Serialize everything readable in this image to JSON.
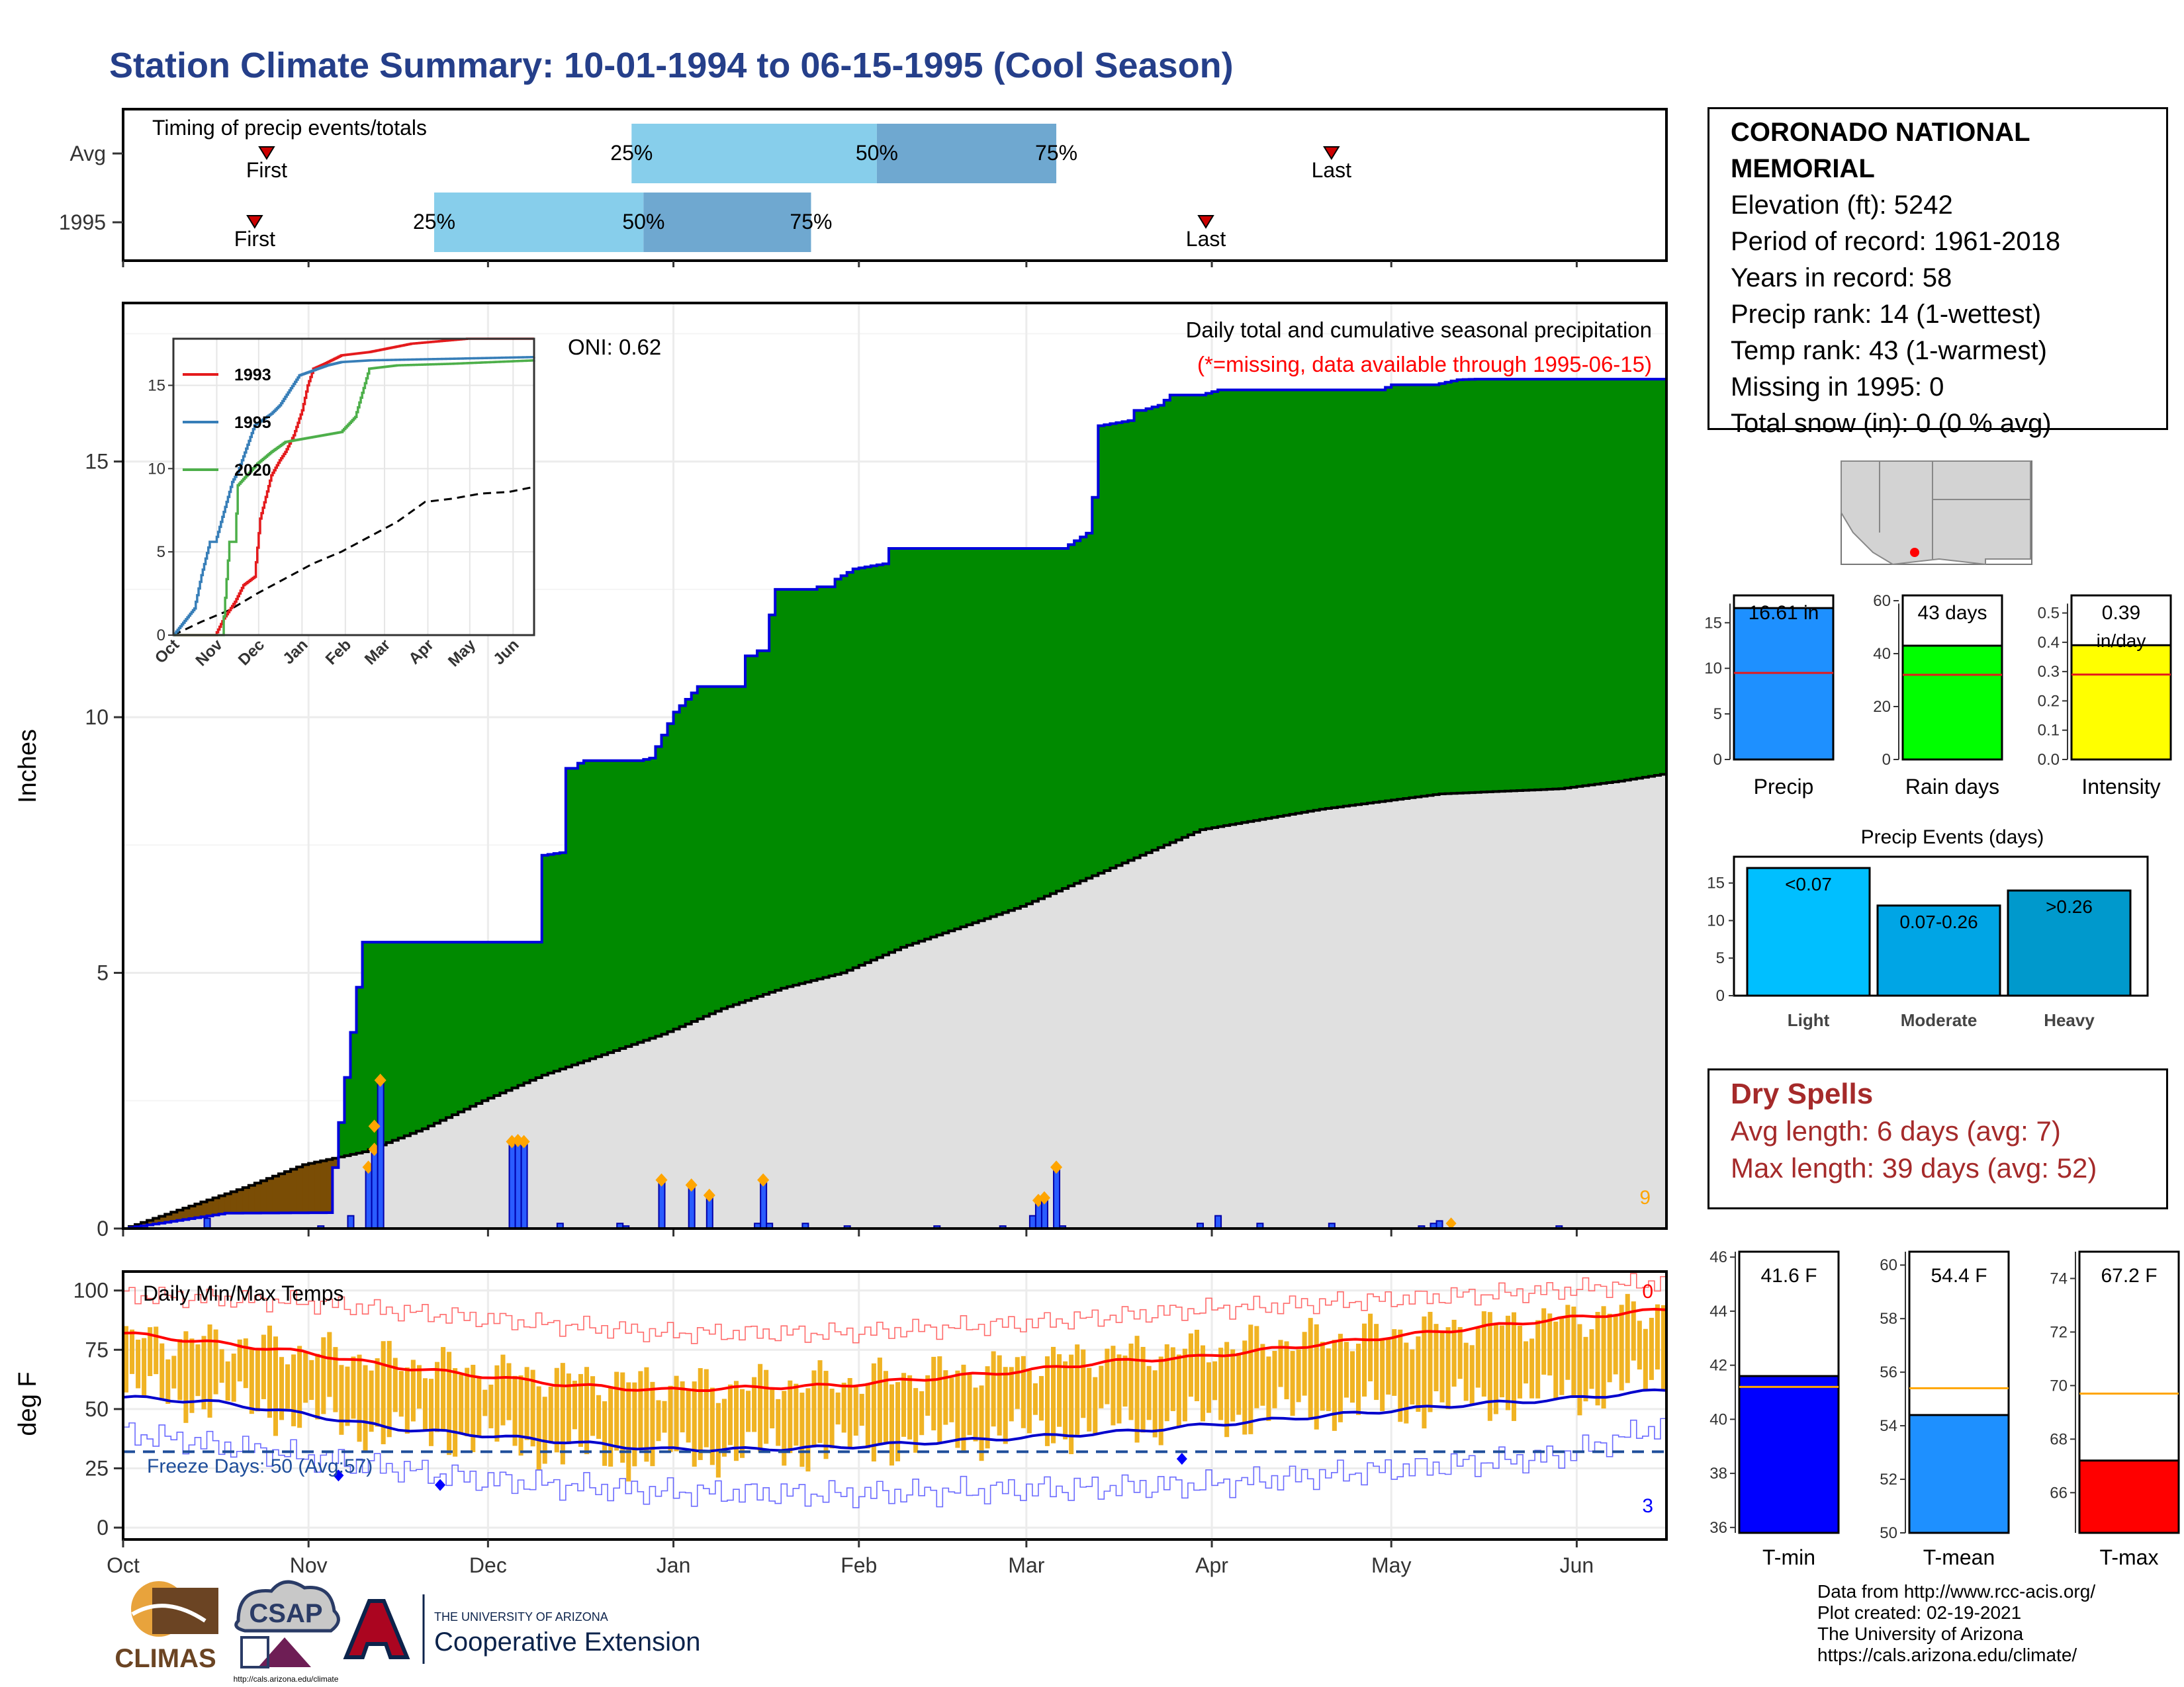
{
  "title": "Station Climate Summary: 10-01-1994 to 06-15-1995 (Cool Season)",
  "timing": {
    "title": "Timing of precip events/totals",
    "rows": [
      {
        "label": "Avg",
        "first_day": 24,
        "last_day": 202,
        "p25_day": 85,
        "p50_day": 126,
        "p75_day": 156,
        "first_label": "First",
        "last_label": "Last",
        "p25_label": "25%",
        "p50_label": "50%",
        "p75_label": "75%"
      },
      {
        "label": "1995",
        "first_day": 22,
        "last_day": 181,
        "p25_day": 52,
        "p50_day": 87,
        "p75_day": 115,
        "first_label": "First",
        "last_label": "Last",
        "p25_label": "25%",
        "p50_label": "50%",
        "p75_label": "75%"
      }
    ]
  },
  "station": {
    "name": "CORONADO NATIONAL MEMORIAL",
    "elevation": "Elevation (ft): 5242",
    "period": "Period of record: 1961-2018",
    "years": "Years in record: 58",
    "precip_rank": "Precip rank: 14 (1-wettest)",
    "temp_rank": "Temp rank: 43 (1-warmest)",
    "missing": "Missing in 1995: 0",
    "snow": "Total snow (in): 0 (0 % avg)"
  },
  "precip_panel": {
    "ylabel": "Inches",
    "yticks": [
      "0",
      "5",
      "10",
      "15"
    ],
    "annot_title": "Daily total and cumulative seasonal precipitation",
    "annot_missing": "(*=missing, data available through 1995-06-15)",
    "oni": "ONI: 0.62",
    "count_label": "9",
    "colors": {
      "above": "#008a00",
      "below": "#7a4d05",
      "avg": "#e0e0e0",
      "line": "#0000dd",
      "marker": "#ffa500"
    }
  },
  "inset": {
    "yticks": [
      "0",
      "5",
      "10",
      "15"
    ],
    "months": [
      "Oct",
      "Nov",
      "Dec",
      "Jan",
      "Feb",
      "Mar",
      "Apr",
      "May",
      "Jun"
    ],
    "legend": [
      {
        "name": "1993",
        "color": "#e41a1c"
      },
      {
        "name": "1995",
        "color": "#377eb8"
      },
      {
        "name": "2020",
        "color": "#4daf4a"
      }
    ]
  },
  "temp_panel": {
    "ylabel": "deg F",
    "title": "Daily Min/Max Temps",
    "freeze_label": "Freeze Days: 50 (Avg:57)",
    "top_count": "0",
    "bottom_count": "3",
    "yticks": [
      "0",
      "25",
      "50",
      "75",
      "100"
    ],
    "xticks": [
      "Oct",
      "Nov",
      "Dec",
      "Jan",
      "Feb",
      "Mar",
      "Apr",
      "May",
      "Jun"
    ]
  },
  "mini_bars": [
    {
      "label": "Precip",
      "value": 16.61,
      "value_label": "16.61 in",
      "avg": 9.5,
      "ymax": 18,
      "ticks": [
        "0",
        "5",
        "10",
        "15"
      ],
      "color": "#1e90ff"
    },
    {
      "label": "Rain days",
      "value": 43,
      "value_label": "43 days",
      "avg": 32,
      "ymax": 62,
      "ticks": [
        "0",
        "20",
        "40",
        "60"
      ],
      "color": "#00ff00"
    },
    {
      "label": "Intensity",
      "value": 0.39,
      "value_label": "0.39",
      "value_sub": "in/day",
      "avg": 0.29,
      "ymax": 0.56,
      "ticks": [
        "0.0",
        "0.1",
        "0.2",
        "0.3",
        "0.4",
        "0.5"
      ],
      "color": "#ffff00"
    }
  ],
  "events": {
    "title": "Precip Events (days)",
    "ticks": [
      "0",
      "5",
      "10",
      "15"
    ],
    "bars": [
      {
        "cat": "Light",
        "label": "<0.07",
        "value": 17,
        "color": "#00bfff"
      },
      {
        "cat": "Moderate",
        "label": "0.07-0.26",
        "value": 12,
        "color": "#00a5e5"
      },
      {
        "cat": "Heavy",
        "label": ">0.26",
        "value": 14,
        "color": "#0099cc"
      }
    ]
  },
  "dry_spells": {
    "title": "Dry Spells",
    "avg_length": "Avg length: 6 days (avg: 7)",
    "max_length": "Max length: 39 days (avg: 52)"
  },
  "temp_bars": [
    {
      "label": "T-min",
      "value": 41.6,
      "value_label": "41.6 F",
      "avg": 41.2,
      "ymin": 35.8,
      "ymax": 46.2,
      "ticks": [
        "36",
        "38",
        "40",
        "42",
        "44",
        "46"
      ],
      "color": "#0000ff"
    },
    {
      "label": "T-mean",
      "value": 54.4,
      "value_label": "54.4 F",
      "avg": 55.4,
      "ymin": 50.0,
      "ymax": 60.5,
      "ticks": [
        "50",
        "52",
        "54",
        "56",
        "58",
        "60"
      ],
      "color": "#1e90ff"
    },
    {
      "label": "T-max",
      "value": 67.2,
      "value_label": "67.2 F",
      "avg": 69.7,
      "ymin": 64.5,
      "ymax": 75.0,
      "ticks": [
        "66",
        "68",
        "70",
        "72",
        "74"
      ],
      "color": "#ff0000"
    }
  ],
  "logos": {
    "climas": "CLIMAS",
    "csap": "CSAP",
    "csap_url": "http://cals.arizona.edu/climate",
    "ua_small": "THE UNIVERSITY OF ARIZONA",
    "ua_big": "Cooperative Extension"
  },
  "credits": {
    "line1": "Data from http://www.rcc-acis.org/",
    "line2": "Plot created: 02-19-2021",
    "line3": "The University of Arizona",
    "line4": "https://cals.arizona.edu/climate/"
  },
  "chart_data": [
    {
      "type": "area",
      "title": "Daily total and cumulative seasonal precipitation",
      "ylabel": "Inches",
      "ylim": [
        0,
        18.1
      ],
      "x_unit": "days since Oct 1",
      "cumulative_1995": {
        "x": [
          0,
          17,
          34,
          40,
          41,
          42,
          43,
          44,
          45,
          47,
          49,
          51,
          55,
          56,
          57,
          59,
          60,
          62,
          64,
          66,
          68,
          69,
          70,
          73,
          74,
          75,
          76,
          77,
          78,
          79,
          80,
          85,
          86,
          88,
          92,
          96,
          103,
          104,
          105,
          106,
          107,
          108,
          109,
          112,
          115,
          116,
          117,
          118,
          119,
          122,
          127,
          128,
          135,
          139,
          140,
          142,
          143,
          150,
          153,
          157,
          161,
          162,
          163,
          168,
          169,
          170,
          173,
          175,
          180,
          183,
          186,
          188,
          190,
          196,
          200,
          204,
          206,
          209,
          210,
          212,
          217,
          218,
          219,
          223,
          226,
          228,
          230,
          232,
          237,
          240,
          247,
          248,
          249,
          250,
          251,
          252,
          253,
          255,
          256,
          257,
          258
        ],
        "y": [
          0,
          0.3,
          0.31,
          5.6,
          5.6,
          5.6,
          5.6,
          5.6,
          5.6,
          5.6,
          5.6,
          5.6,
          5.6,
          5.6,
          5.6,
          5.6,
          5.6,
          5.6,
          5.6,
          5.6,
          5.6,
          5.6,
          7.3,
          7.35,
          9.0,
          9.0,
          9.1,
          9.15,
          9.15,
          9.15,
          9.15,
          9.15,
          9.15,
          9.2,
          10.1,
          10.6,
          10.6,
          11.2,
          11.2,
          11.3,
          11.3,
          12.0,
          12.5,
          12.5,
          12.5,
          12.55,
          12.55,
          12.55,
          12.7,
          12.9,
          13.0,
          13.3,
          13.3,
          13.3,
          13.3,
          13.3,
          13.3,
          13.3,
          13.3,
          13.3,
          13.6,
          14.3,
          15.7,
          15.8,
          16.0,
          16.0,
          16.1,
          16.3,
          16.3,
          16.4,
          16.4,
          16.4,
          16.4,
          16.4,
          16.4,
          16.4,
          16.4,
          16.4,
          16.4,
          16.5,
          16.5,
          16.5,
          16.5,
          16.6,
          16.61,
          16.61,
          16.61,
          16.61,
          16.61,
          16.61,
          16.61,
          16.61,
          16.61,
          16.61,
          16.61,
          16.61,
          16.61,
          16.61,
          16.61,
          16.61,
          16.61
        ]
      },
      "cumulative_avg": {
        "x": [
          0,
          20,
          30,
          40,
          50,
          60,
          70,
          80,
          90,
          100,
          110,
          120,
          130,
          140,
          150,
          160,
          170,
          180,
          190,
          200,
          210,
          220,
          230,
          240,
          250,
          258
        ],
        "y": [
          0,
          0.8,
          1.25,
          1.5,
          1.95,
          2.5,
          3.0,
          3.4,
          3.8,
          4.3,
          4.7,
          5.0,
          5.5,
          5.9,
          6.3,
          6.8,
          7.3,
          7.8,
          8.0,
          8.2,
          8.35,
          8.5,
          8.55,
          8.6,
          8.75,
          8.9
        ]
      },
      "daily_1995": {
        "x": [
          14,
          33,
          38,
          41,
          42,
          43,
          65,
          66,
          67,
          73,
          83,
          84,
          90,
          95,
          98,
          106,
          107,
          108,
          114,
          121,
          136,
          147,
          152,
          153,
          154,
          156,
          157,
          180,
          183,
          190,
          202,
          217,
          219,
          220,
          240
        ],
        "y": [
          0.2,
          0.05,
          0.25,
          1.2,
          1.55,
          2.9,
          1.7,
          1.72,
          1.7,
          0.1,
          0.1,
          0.05,
          0.95,
          0.85,
          0.65,
          0.1,
          0.95,
          0.1,
          0.1,
          0.05,
          0.05,
          0.05,
          0.25,
          0.55,
          0.6,
          1.2,
          0.05,
          0.1,
          0.25,
          0.1,
          0.1,
          0.05,
          0.1,
          0.15,
          0.05
        ]
      }
    },
    {
      "type": "line",
      "title": "",
      "xlim_months": [
        "Oct",
        "Jun"
      ],
      "ylim": [
        0,
        17.8
      ],
      "series": [
        {
          "name": "1993",
          "x": [
            0,
            20,
            30,
            36,
            44,
            50,
            58,
            62,
            70,
            76,
            80,
            86,
            92,
            96,
            100,
            108,
            120,
            140,
            170,
            210,
            258
          ],
          "y": [
            0,
            0,
            0,
            1,
            2,
            3,
            3.5,
            7,
            9.6,
            10.5,
            11,
            12,
            13.5,
            15,
            16,
            16.3,
            16.8,
            17,
            17.5,
            17.8,
            17.8
          ]
        },
        {
          "name": "1995",
          "x": [
            0,
            15,
            20,
            26,
            30,
            42,
            46,
            58,
            70,
            76,
            90,
            110,
            120,
            140,
            200,
            258
          ],
          "y": [
            0,
            1.6,
            3.6,
            5.6,
            5.6,
            9.2,
            9.8,
            12.6,
            13.3,
            13.8,
            15.6,
            16.2,
            16.4,
            16.5,
            16.6,
            16.7
          ]
        },
        {
          "name": "2020",
          "x": [
            0,
            35,
            40,
            44,
            46,
            60,
            70,
            80,
            100,
            120,
            130,
            140,
            160,
            200,
            258
          ],
          "y": [
            0,
            0,
            5.6,
            5.6,
            9,
            10.3,
            11,
            11.6,
            11.9,
            12.2,
            13.1,
            16,
            16.2,
            16.3,
            16.5
          ]
        }
      ],
      "avg_dashed": {
        "x": [
          0,
          20,
          40,
          60,
          80,
          100,
          120,
          140,
          160,
          180,
          200,
          220,
          240,
          258
        ],
        "y": [
          0,
          0.8,
          1.5,
          2.5,
          3.4,
          4.3,
          5.0,
          5.9,
          6.8,
          8.0,
          8.2,
          8.5,
          8.6,
          8.9
        ]
      }
    },
    {
      "type": "bar",
      "title": "Daily Min/Max Temps",
      "ylabel": "deg F",
      "ylim": [
        -5,
        108
      ],
      "freeze_threshold": 32,
      "avg_max": {
        "x": [
          0,
          15,
          30,
          45,
          60,
          75,
          90,
          105,
          120,
          135,
          150,
          165,
          180,
          195,
          210,
          225,
          240,
          258
        ],
        "y": [
          82,
          78,
          74,
          68,
          64,
          60,
          58,
          59,
          60,
          63,
          66,
          70,
          72,
          76,
          80,
          84,
          88,
          92
        ]
      },
      "avg_min": {
        "x": [
          0,
          15,
          30,
          45,
          60,
          75,
          90,
          105,
          120,
          135,
          150,
          165,
          180,
          195,
          210,
          225,
          240,
          258
        ],
        "y": [
          55,
          53,
          48,
          42,
          39,
          36,
          33,
          33,
          34,
          36,
          38,
          40,
          43,
          46,
          49,
          52,
          54,
          58
        ]
      },
      "record_max": {
        "x": [
          0,
          30,
          60,
          90,
          120,
          150,
          180,
          210,
          240,
          258
        ],
        "y": [
          98,
          95,
          88,
          82,
          82,
          86,
          92,
          96,
          100,
          104
        ]
      },
      "record_min": {
        "x": [
          0,
          30,
          60,
          90,
          120,
          150,
          180,
          210,
          240,
          258
        ],
        "y": [
          40,
          30,
          20,
          15,
          14,
          16,
          18,
          24,
          30,
          44
        ]
      },
      "daily_range_samples": [
        {
          "x": 0,
          "min": 57,
          "max": 80
        },
        {
          "x": 20,
          "min": 52,
          "max": 78
        },
        {
          "x": 40,
          "min": 42,
          "max": 72
        },
        {
          "x": 60,
          "min": 38,
          "max": 66
        },
        {
          "x": 80,
          "min": 30,
          "max": 62
        },
        {
          "x": 100,
          "min": 32,
          "max": 60
        },
        {
          "x": 120,
          "min": 34,
          "max": 62
        },
        {
          "x": 140,
          "min": 38,
          "max": 66
        },
        {
          "x": 160,
          "min": 42,
          "max": 72
        },
        {
          "x": 180,
          "min": 46,
          "max": 76
        },
        {
          "x": 200,
          "min": 50,
          "max": 80
        },
        {
          "x": 220,
          "min": 52,
          "max": 84
        },
        {
          "x": 240,
          "min": 56,
          "max": 88
        },
        {
          "x": 258,
          "min": 62,
          "max": 93
        }
      ]
    }
  ]
}
